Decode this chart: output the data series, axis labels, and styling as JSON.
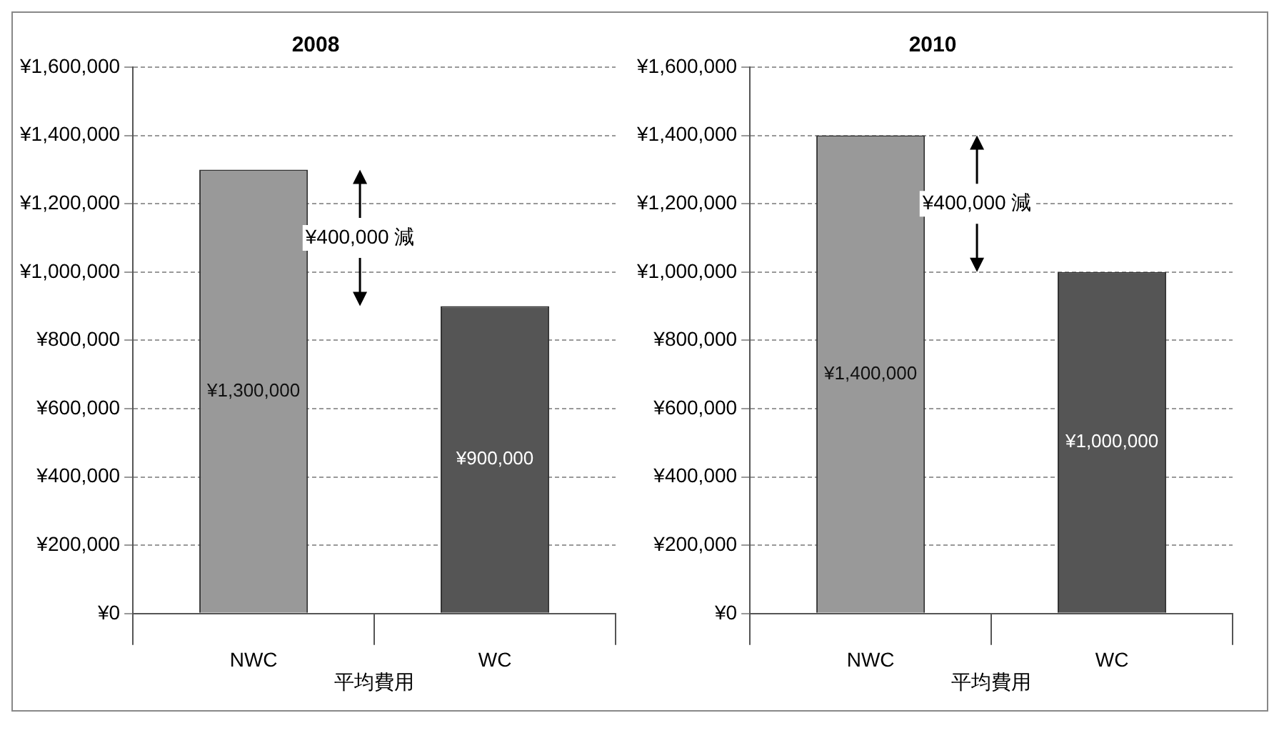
{
  "chart_data": [
    {
      "type": "bar",
      "title": "2008",
      "xlabel": "平均費用",
      "categories": [
        "NWC",
        "WC"
      ],
      "values": [
        1300000,
        900000
      ],
      "colors": [
        "#999999",
        "#555555"
      ],
      "value_labels": [
        "¥1,300,000",
        "¥900,000"
      ],
      "annotations": [
        "¥400,000 減"
      ],
      "ylim": [
        0,
        1600000
      ],
      "yticks": [
        {
          "value": 0,
          "label": "¥0"
        },
        {
          "value": 200000,
          "label": "¥200,000"
        },
        {
          "value": 400000,
          "label": "¥400,000"
        },
        {
          "value": 600000,
          "label": "¥600,000"
        },
        {
          "value": 800000,
          "label": "¥800,000"
        },
        {
          "value": 1000000,
          "label": "¥1,000,000"
        },
        {
          "value": 1200000,
          "label": "¥1,200,000"
        },
        {
          "value": 1400000,
          "label": "¥1,400,000"
        },
        {
          "value": 1600000,
          "label": "¥1,600,000"
        }
      ],
      "grid": "y",
      "legend": false
    },
    {
      "type": "bar",
      "title": "2010",
      "xlabel": "平均費用",
      "categories": [
        "NWC",
        "WC"
      ],
      "values": [
        1400000,
        1000000
      ],
      "colors": [
        "#999999",
        "#555555"
      ],
      "value_labels": [
        "¥1,400,000",
        "¥1,000,000"
      ],
      "annotations": [
        "¥400,000 減"
      ],
      "ylim": [
        0,
        1600000
      ],
      "yticks": [
        {
          "value": 0,
          "label": "¥0"
        },
        {
          "value": 200000,
          "label": "¥200,000"
        },
        {
          "value": 400000,
          "label": "¥400,000"
        },
        {
          "value": 600000,
          "label": "¥600,000"
        },
        {
          "value": 800000,
          "label": "¥800,000"
        },
        {
          "value": 1000000,
          "label": "¥1,000,000"
        },
        {
          "value": 1200000,
          "label": "¥1,200,000"
        },
        {
          "value": 1400000,
          "label": "¥1,400,000"
        },
        {
          "value": 1600000,
          "label": "¥1,600,000"
        }
      ],
      "grid": "y",
      "legend": false
    }
  ]
}
